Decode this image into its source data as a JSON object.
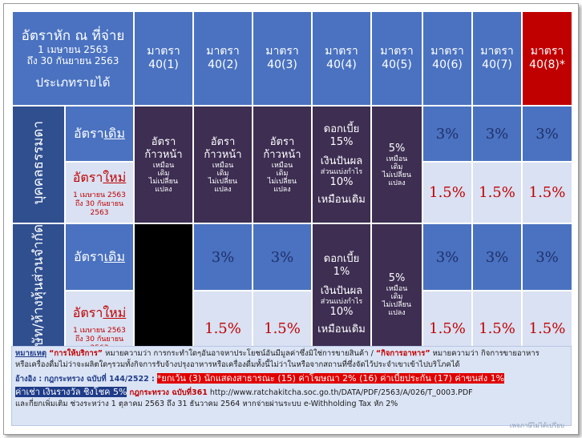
{
  "corner": {
    "title": "อัตราหัก ณ ที่จ่าย",
    "date_line1": "1 เมษายน 2563",
    "date_line2": "ถึง 30 กันยายน 2563",
    "income_type": "ประเภทรายได้"
  },
  "sections": [
    "มาตรา 40(1)",
    "มาตรา 40(2)",
    "มาตรา 40(3)",
    "มาตรา 40(4)",
    "มาตรา 40(5)",
    "มาตรา 40(6)",
    "มาตรา 40(7)",
    "มาตรา 40(8)*"
  ],
  "groups": {
    "individual": "บุคคลธรรมดา",
    "company": "บริษัท/ห้างหุ้นส่วนจำกัด"
  },
  "row_labels": {
    "old_prefix": "อัตรา",
    "old_word": "เดิม",
    "new_prefix": "อัตรา",
    "new_word": "ใหม่",
    "new_date1": "1 เมษายน 2563",
    "new_date2": "ถึง 30 กันยายน",
    "new_date3": "2563"
  },
  "progressive": {
    "line1": "อัตรา",
    "line2": "ก้าวหน้า",
    "line3": "เหมือน",
    "line4": "เดิม",
    "line5": "ไม่เปลี่ยน",
    "line6": "แปลง"
  },
  "s40_4_individual": {
    "interest": "ดอกเบี้ย",
    "interest_rate": "15%",
    "dividend": "เงินปันผล",
    "share": "ส่วนแบ่งกำไร",
    "dividend_rate": "10%",
    "same": "เหมือนเดิม"
  },
  "s40_4_company": {
    "interest": "ดอกเบี้ย",
    "interest_rate": "1%",
    "dividend": "เงินปันผล",
    "share": "ส่วนแบ่งกำไร",
    "dividend_rate": "10%",
    "same": "เหมือนเดิม"
  },
  "s40_5": {
    "rate": "5%",
    "line1": "เหมือน",
    "line2": "เดิม",
    "line3": "ไม่เปลี่ยน",
    "line4": "แปลง"
  },
  "rates": {
    "old": "3%",
    "new": "1.5%"
  },
  "note": {
    "head": "หมายเหตุ",
    "service_q": "“การให้บริการ”",
    "service_text": "หมายความว่า การกระทำใดๆอันอาจหาประโยชน์อันมีมูลค่าซึ่งมิใช่การขายสินค้า /",
    "food_q": "“กิจการอาหาร”",
    "food_text": "หมายความว่า กิจการขายอาหาร",
    "line2": "หรือเครื่องดื่มไม่ว่าจะผลิตใดๆรวมทั้งกิจการรับจ้างปรุงอาหารหรือเครื่องดื่มทั้งนี้ไม่ว่าในหรือจากสถานที่ซึ่งจัดไว้ประจำเขาเข้าไปบริโภคได้",
    "ref_label": "อ้างอิง :",
    "ref1": "กฎกระทรวง ฉบับที่ 144/2522 :",
    "exception": "*ยกเว้น (3) นักแสดงสาธารณะ (15) ค่าโฆษณา 2% (16) ค่าเบี้ยประกัน (17) ค่าขนส่ง 1%",
    "exception2": "ค่าเช่า เงินรางวัล ชิงโชค 5%",
    "ref2": "กฎกระทรวง ฉบับที่361",
    "url": "http://www.ratchakitcha.soc.go.th/DATA/PDF/2563/A/026/T_0003.PDF",
    "line4": "และกี่ยกเพิ่มเติม ช่วงระหว่าง 1 ตุลาคม 2563 ถึง 31 ธันวาคม 2564 หากจ่ายผ่านระบบ e-Withholding Tax หัก 2%"
  },
  "watermark": "เพจภาษีไม่ได้เปรียบ",
  "colors": {
    "header_blue": "#4a72c0",
    "dark_purple": "#3d2e52",
    "light_blue": "#d9e1f2",
    "accent_red": "#c00000"
  }
}
